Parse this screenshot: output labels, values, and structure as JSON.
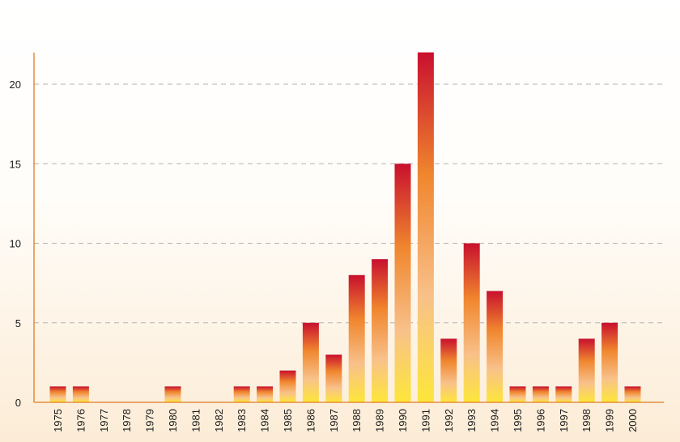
{
  "chart_data": {
    "type": "bar",
    "title": "",
    "xlabel": "",
    "ylabel": "",
    "ylim": [
      0,
      22
    ],
    "yticks": [
      0,
      5,
      10,
      15,
      20
    ],
    "grid": "horizontal dashed",
    "categories": [
      "1975",
      "1976",
      "1977",
      "1978",
      "1979",
      "1980",
      "1981",
      "1982",
      "1983",
      "1984",
      "1985",
      "1986",
      "1987",
      "1988",
      "1989",
      "1990",
      "1991",
      "1992",
      "1993",
      "1994",
      "1995",
      "1996",
      "1997",
      "1998",
      "1999",
      "2000"
    ],
    "values": [
      1,
      1,
      0,
      0,
      0,
      1,
      0,
      0,
      1,
      1,
      2,
      5,
      3,
      8,
      9,
      15,
      22,
      4,
      10,
      7,
      1,
      1,
      1,
      4,
      5,
      1
    ]
  },
  "colors": {
    "axis": "#e07b22",
    "grid": "#b3b3b3",
    "bar_top": "#c8102e",
    "bar_mid": "#f0862e",
    "bar_light": "#f8c18a",
    "bar_bottom": "#fde63a"
  }
}
